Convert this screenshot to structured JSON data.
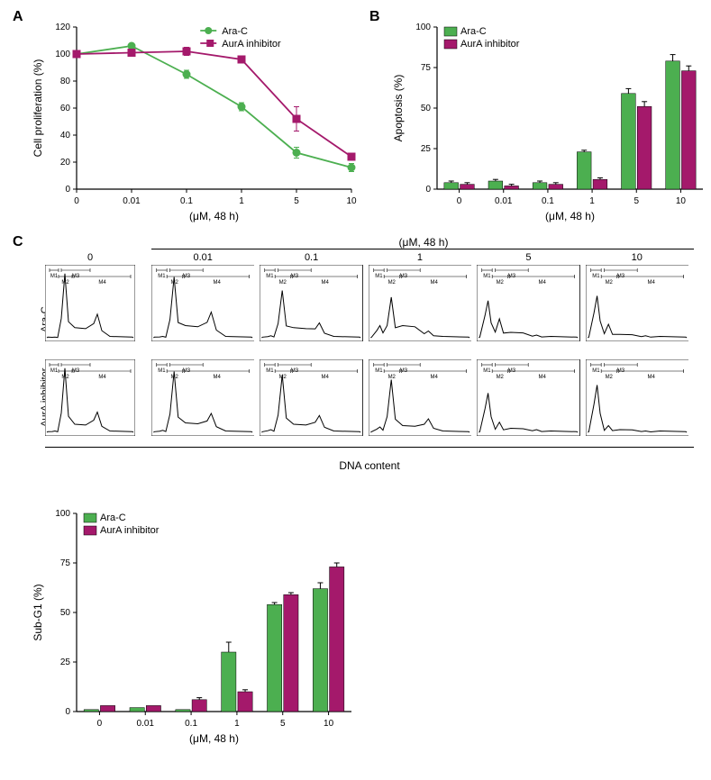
{
  "colors": {
    "arac": "#4caf50",
    "aura": "#a4196b",
    "axis": "#000000",
    "bg": "#ffffff"
  },
  "fonts": {
    "panel_label": 16,
    "axis_label": 12,
    "tick_label": 10,
    "legend": 11
  },
  "panelA": {
    "type": "line",
    "title_letter": "A",
    "xlabel": "(μM, 48 h)",
    "ylabel": "Cell proliferation (%)",
    "x_categories": [
      "0",
      "0.01",
      "0.1",
      "1",
      "5",
      "10"
    ],
    "ylim": [
      0,
      120
    ],
    "ytick_step": 20,
    "series": [
      {
        "name": "Ara-C",
        "color": "#4caf50",
        "marker": "circle",
        "y": [
          100,
          106,
          85,
          61,
          27,
          16
        ],
        "err": [
          0,
          2,
          3,
          3,
          4,
          3
        ]
      },
      {
        "name": "AurA inhibitor",
        "color": "#a4196b",
        "marker": "square",
        "y": [
          100,
          101,
          102,
          96,
          52,
          24
        ],
        "err": [
          0,
          2,
          3,
          2,
          9,
          2
        ]
      }
    ]
  },
  "panelB": {
    "type": "bar",
    "title_letter": "B",
    "xlabel": "(μM, 48 h)",
    "ylabel": "Apoptosis (%)",
    "x_categories": [
      "0",
      "0.01",
      "0.1",
      "1",
      "5",
      "10"
    ],
    "ylim": [
      0,
      100
    ],
    "ytick_step": 25,
    "series": [
      {
        "name": "Ara-C",
        "color": "#4caf50",
        "y": [
          4,
          5,
          4,
          23,
          59,
          79
        ],
        "err": [
          1,
          1,
          1,
          1,
          3,
          4
        ]
      },
      {
        "name": "AurA inhibitor",
        "color": "#a4196b",
        "y": [
          3,
          2,
          3,
          6,
          51,
          73
        ],
        "err": [
          1,
          1,
          1,
          1,
          3,
          3
        ]
      }
    ]
  },
  "panelC": {
    "title_letter": "C",
    "header": "(μM, 48 h)",
    "concentrations": [
      "0",
      "0.01",
      "0.1",
      "1",
      "5",
      "10"
    ],
    "rows": [
      "Ara-C",
      "AurA inhibitor"
    ],
    "dna_label": "DNA content",
    "gate_labels": [
      "M1",
      "M2",
      "M3",
      "M4"
    ],
    "histograms": {
      "Ara-C": {
        "0": {
          "sub": 1,
          "g1": 95,
          "s": 15,
          "g2": 35
        },
        "0.01": {
          "sub": 2,
          "g1": 90,
          "s": 18,
          "g2": 38
        },
        "0.1": {
          "sub": 3,
          "g1": 70,
          "s": 15,
          "g2": 22
        },
        "1": {
          "sub": 18,
          "g1": 60,
          "s": 18,
          "g2": 10
        },
        "5": {
          "sub": 55,
          "g1": 28,
          "s": 8,
          "g2": 4
        },
        "10": {
          "sub": 62,
          "g1": 20,
          "s": 5,
          "g2": 3
        }
      },
      "AurA inhibitor": {
        "0": {
          "sub": 2,
          "g1": 95,
          "s": 12,
          "g2": 30
        },
        "0.01": {
          "sub": 3,
          "g1": 90,
          "s": 14,
          "g2": 28
        },
        "0.1": {
          "sub": 4,
          "g1": 85,
          "s": 12,
          "g2": 25
        },
        "1": {
          "sub": 8,
          "g1": 78,
          "s": 10,
          "g2": 20
        },
        "5": {
          "sub": 58,
          "g1": 15,
          "s": 6,
          "g2": 4
        },
        "10": {
          "sub": 70,
          "g1": 10,
          "s": 4,
          "g2": 2
        }
      }
    }
  },
  "panelD": {
    "type": "bar",
    "xlabel": "(μM, 48 h)",
    "ylabel": "Sub-G1 (%)",
    "x_categories": [
      "0",
      "0.01",
      "0.1",
      "1",
      "5",
      "10"
    ],
    "ylim": [
      0,
      100
    ],
    "ytick_step": 25,
    "series": [
      {
        "name": "Ara-C",
        "color": "#4caf50",
        "y": [
          1,
          2,
          1,
          30,
          54,
          62
        ],
        "err": [
          0,
          0,
          0,
          5,
          1,
          3
        ]
      },
      {
        "name": "AurA inhibitor",
        "color": "#a4196b",
        "y": [
          3,
          3,
          6,
          10,
          59,
          73
        ],
        "err": [
          0,
          0,
          1,
          1,
          1,
          2
        ]
      }
    ]
  }
}
